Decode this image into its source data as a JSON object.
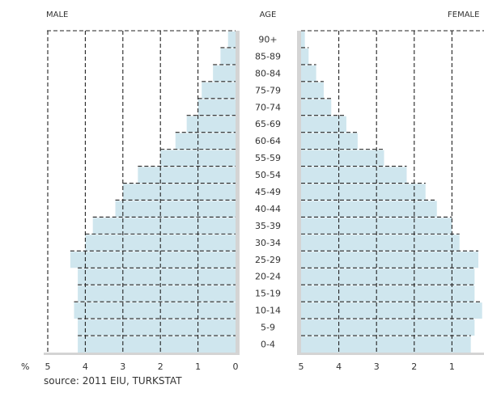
{
  "chart_data": {
    "type": "bar",
    "labels": {
      "male": "MALE",
      "age": "AGE",
      "female": "FEMALE",
      "percent_symbol": "%"
    },
    "categories": [
      "90+",
      "85-89",
      "80-84",
      "75-79",
      "70-74",
      "65-69",
      "60-64",
      "55-59",
      "50-54",
      "45-49",
      "40-44",
      "35-39",
      "30-34",
      "25-29",
      "20-24",
      "15-19",
      "10-14",
      "5-9",
      "0-4"
    ],
    "series": [
      {
        "name": "MALE",
        "values": [
          0.2,
          0.4,
          0.6,
          0.9,
          1.0,
          1.3,
          1.6,
          2.0,
          2.6,
          3.0,
          3.2,
          3.8,
          4.0,
          4.4,
          4.2,
          4.2,
          4.3,
          4.2,
          4.2
        ]
      },
      {
        "name": "FEMALE",
        "values": [
          4.9,
          4.8,
          4.6,
          4.4,
          4.2,
          3.8,
          3.5,
          2.8,
          2.2,
          1.7,
          1.4,
          1.0,
          0.8,
          0.3,
          0.4,
          0.4,
          0.2,
          0.4,
          0.5
        ]
      }
    ],
    "male_ticks": [
      "5",
      "4",
      "3",
      "2",
      "1",
      "0"
    ],
    "female_ticks": [
      "5",
      "4",
      "3",
      "2",
      "1"
    ],
    "xlim": [
      0,
      5
    ],
    "colors": {
      "bar": "#cfe6ee",
      "bar_edge": "#b7d7e3",
      "axis": "#d4d4d4",
      "grid": "#222222"
    },
    "source": "source: 2011 EIU, TURKSTAT"
  }
}
